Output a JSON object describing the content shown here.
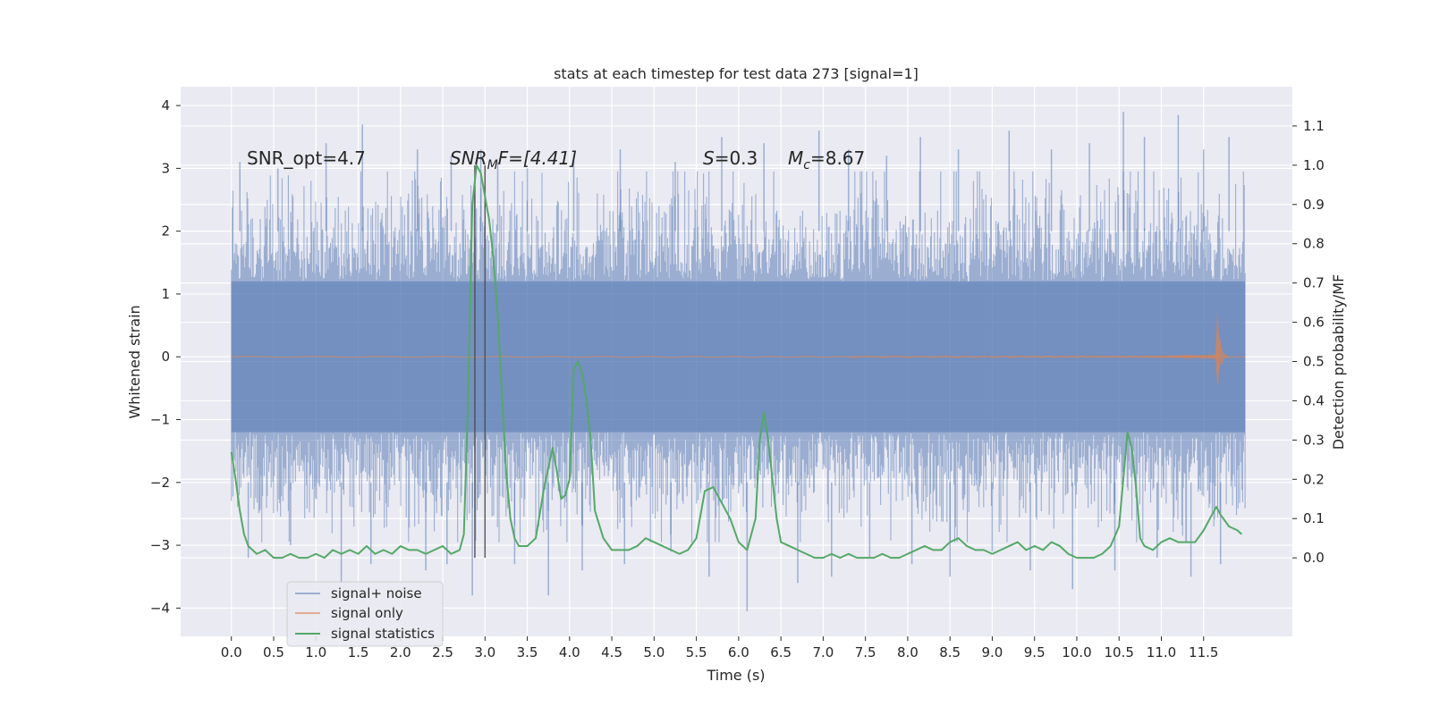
{
  "chart_data": {
    "type": "line",
    "title": "stats at each timestep for test data 273 [signal=1]",
    "xlabel": "Time (s)",
    "ylabel": "Whitened strain",
    "y2label": "Detection probability/MF",
    "xlim": [
      -0.6,
      12.55
    ],
    "ylim": [
      -4.45,
      4.3
    ],
    "y2lim": [
      -0.2,
      1.2
    ],
    "xticks": [
      "0.0",
      "0.5",
      "1.0",
      "1.5",
      "2.0",
      "2.5",
      "3.0",
      "3.5",
      "4.0",
      "4.5",
      "5.0",
      "5.5",
      "6.0",
      "6.5",
      "7.0",
      "7.5",
      "8.0",
      "8.5",
      "9.0",
      "9.5",
      "10.0",
      "10.5",
      "11.0",
      "11.5"
    ],
    "yticks": [
      "4",
      "3",
      "2",
      "1",
      "0",
      "−1",
      "−2",
      "−3",
      "−4"
    ],
    "y2ticks": [
      "1.1",
      "1.0",
      "0.9",
      "0.8",
      "0.7",
      "0.6",
      "0.5",
      "0.4",
      "0.3",
      "0.2",
      "0.1",
      "0.0"
    ],
    "grid": true,
    "legend_position": "lower-left",
    "colors": {
      "background": "#eaeaf2",
      "grid": "#ffffff",
      "noise": "#4c72b0",
      "signal": "#dd8452",
      "stats": "#55a868",
      "marker": "#4d4d4d"
    },
    "annotations": {
      "snr_opt": "SNR_opt=4.7",
      "snr_mf_main": "SNR",
      "snr_mf_sub": "M",
      "snr_mf_rest": "F=[4.41]",
      "s_sym": "S",
      "s_val": "=0.3",
      "mc_sym": "M",
      "mc_sub": "c",
      "mc_val": "=8.67"
    },
    "markers": [
      2.88,
      3.0
    ],
    "series": [
      {
        "name": "signal+ noise",
        "kind": "noise-band",
        "x_start": 0.0,
        "x_end": 11.99,
        "core_range": [
          -1.2,
          1.2
        ],
        "extreme_peaks_x": [
          0.1,
          0.55,
          1.12,
          1.55,
          2.2,
          2.6,
          2.95,
          3.15,
          3.5,
          4.05,
          4.6,
          5.25,
          5.8,
          6.3,
          6.95,
          7.3,
          7.75,
          8.15,
          8.6,
          9.2,
          9.7,
          10.15,
          10.55,
          10.8,
          11.2,
          11.5,
          11.8
        ],
        "extreme_peaks_y": [
          3.1,
          3.0,
          3.4,
          3.7,
          3.3,
          3.2,
          3.3,
          3.1,
          3.0,
          3.2,
          3.3,
          3.1,
          3.5,
          3.4,
          3.6,
          3.3,
          3.2,
          3.5,
          3.3,
          3.6,
          3.3,
          3.4,
          3.9,
          3.5,
          3.85,
          3.3,
          3.5
        ],
        "extreme_troughs_x": [
          0.2,
          0.7,
          1.3,
          1.65,
          2.3,
          2.55,
          2.85,
          3.35,
          3.75,
          4.15,
          4.65,
          5.2,
          5.65,
          6.1,
          6.7,
          7.1,
          7.55,
          8.05,
          8.5,
          9.0,
          9.45,
          9.95,
          10.45,
          10.95,
          11.35,
          11.7
        ],
        "extreme_troughs_y": [
          -3.2,
          -3.0,
          -3.6,
          -3.3,
          -3.4,
          -3.3,
          -3.8,
          -3.3,
          -3.8,
          -3.4,
          -3.3,
          -3.1,
          -3.5,
          -4.05,
          -3.6,
          -3.5,
          -3.2,
          -3.3,
          -3.5,
          -3.1,
          -3.4,
          -3.7,
          -3.4,
          -3.2,
          -3.5,
          -3.3
        ]
      },
      {
        "name": "signal only",
        "kind": "chirp",
        "x_start": 0.0,
        "x_end": 11.99,
        "merger_x": 11.66,
        "peak_amplitude": 0.82
      },
      {
        "name": "signal statistics",
        "kind": "line",
        "x": [
          0.0,
          0.05,
          0.1,
          0.15,
          0.2,
          0.3,
          0.4,
          0.5,
          0.6,
          0.7,
          0.8,
          0.9,
          1.0,
          1.1,
          1.2,
          1.3,
          1.4,
          1.5,
          1.6,
          1.7,
          1.8,
          1.9,
          2.0,
          2.1,
          2.2,
          2.3,
          2.4,
          2.5,
          2.6,
          2.7,
          2.75,
          2.8,
          2.85,
          2.9,
          2.95,
          3.0,
          3.05,
          3.1,
          3.15,
          3.2,
          3.25,
          3.3,
          3.35,
          3.4,
          3.5,
          3.6,
          3.7,
          3.8,
          3.85,
          3.9,
          3.95,
          4.0,
          4.05,
          4.1,
          4.15,
          4.2,
          4.25,
          4.3,
          4.4,
          4.5,
          4.6,
          4.7,
          4.8,
          4.9,
          5.0,
          5.1,
          5.2,
          5.3,
          5.4,
          5.5,
          5.6,
          5.7,
          5.75,
          5.8,
          5.9,
          6.0,
          6.1,
          6.2,
          6.25,
          6.3,
          6.35,
          6.4,
          6.45,
          6.5,
          6.6,
          6.7,
          6.8,
          6.9,
          7.0,
          7.1,
          7.2,
          7.3,
          7.4,
          7.5,
          7.6,
          7.7,
          7.8,
          7.9,
          8.0,
          8.1,
          8.2,
          8.3,
          8.4,
          8.5,
          8.6,
          8.7,
          8.8,
          8.9,
          9.0,
          9.1,
          9.2,
          9.3,
          9.4,
          9.5,
          9.6,
          9.7,
          9.8,
          9.9,
          10.0,
          10.1,
          10.2,
          10.3,
          10.4,
          10.5,
          10.55,
          10.6,
          10.65,
          10.7,
          10.75,
          10.8,
          10.9,
          11.0,
          11.1,
          11.2,
          11.3,
          11.4,
          11.5,
          11.6,
          11.65,
          11.7,
          11.8,
          11.9,
          11.95
        ],
        "y": [
          0.27,
          0.2,
          0.12,
          0.06,
          0.03,
          0.01,
          0.02,
          0.0,
          0.0,
          0.01,
          0.0,
          0.0,
          0.01,
          0.0,
          0.02,
          0.01,
          0.02,
          0.01,
          0.03,
          0.01,
          0.02,
          0.01,
          0.03,
          0.02,
          0.02,
          0.01,
          0.02,
          0.03,
          0.01,
          0.02,
          0.06,
          0.4,
          0.9,
          1.0,
          0.98,
          0.92,
          0.86,
          0.76,
          0.62,
          0.42,
          0.22,
          0.1,
          0.05,
          0.03,
          0.03,
          0.05,
          0.18,
          0.28,
          0.22,
          0.15,
          0.16,
          0.2,
          0.48,
          0.5,
          0.47,
          0.4,
          0.3,
          0.12,
          0.05,
          0.02,
          0.02,
          0.02,
          0.03,
          0.05,
          0.04,
          0.03,
          0.02,
          0.01,
          0.02,
          0.05,
          0.17,
          0.18,
          0.16,
          0.14,
          0.1,
          0.04,
          0.02,
          0.1,
          0.3,
          0.37,
          0.3,
          0.2,
          0.1,
          0.04,
          0.03,
          0.02,
          0.01,
          0.0,
          0.0,
          0.01,
          0.0,
          0.01,
          0.0,
          0.0,
          0.0,
          0.01,
          0.0,
          0.0,
          0.01,
          0.02,
          0.03,
          0.02,
          0.02,
          0.04,
          0.05,
          0.03,
          0.02,
          0.02,
          0.01,
          0.02,
          0.03,
          0.04,
          0.02,
          0.03,
          0.02,
          0.04,
          0.03,
          0.01,
          0.0,
          0.0,
          0.0,
          0.01,
          0.03,
          0.08,
          0.2,
          0.32,
          0.28,
          0.18,
          0.05,
          0.03,
          0.02,
          0.04,
          0.05,
          0.04,
          0.04,
          0.04,
          0.07,
          0.11,
          0.13,
          0.11,
          0.08,
          0.07,
          0.06
        ]
      }
    ]
  }
}
